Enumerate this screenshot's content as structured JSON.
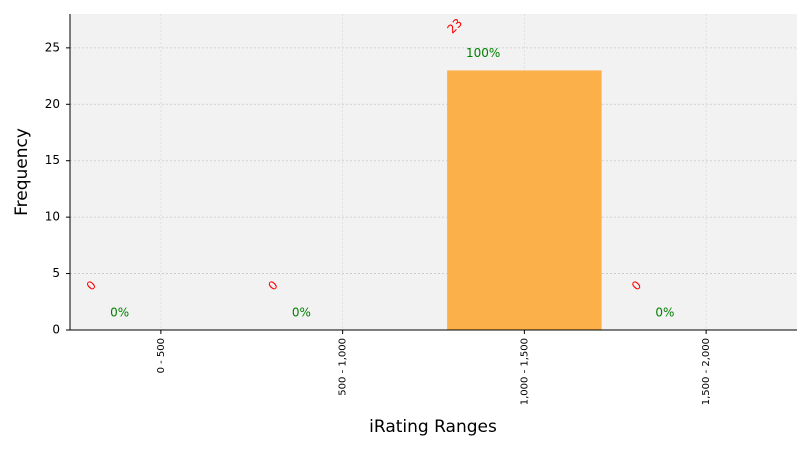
{
  "chart_data": {
    "type": "bar",
    "x_label": "iRating Ranges",
    "y_label": "Frequency",
    "categories": [
      "0 - 500",
      "500 - 1,000",
      "1,000 - 1,500",
      "1,500 - 2,000"
    ],
    "values": [
      0,
      0,
      23,
      0
    ],
    "percent_labels": [
      "0%",
      "0%",
      "100%",
      "0%"
    ],
    "color": "#fbb04a",
    "ylim": [
      0,
      28
    ],
    "yticks": [
      0,
      5,
      10,
      15,
      20,
      25
    ],
    "grid": true
  }
}
